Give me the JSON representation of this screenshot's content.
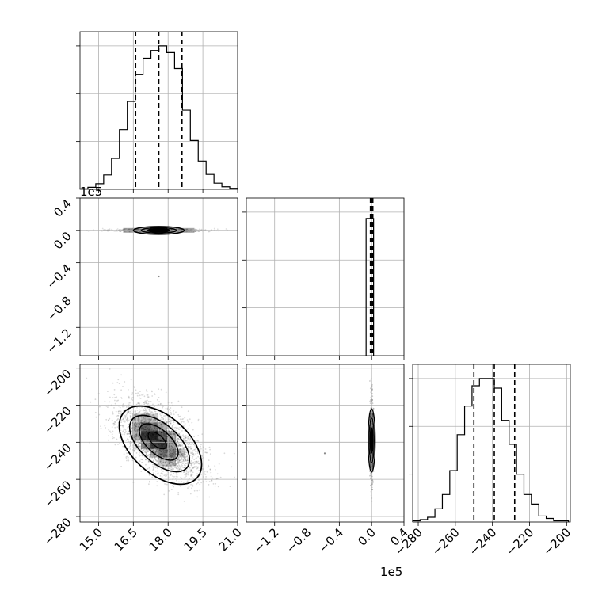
{
  "chart_data": {
    "type": "corner",
    "title": "",
    "grid": true,
    "colors": {
      "line": "#000000",
      "grid": "#b0b0b0",
      "background": "#ffffff",
      "density": "#000000"
    },
    "parameters": [
      {
        "label": "",
        "range": [
          14.2,
          21.0
        ],
        "offset_text": "1e5"
      },
      {
        "label": "",
        "range": [
          -1.55,
          0.4
        ],
        "offset_text": "1e5"
      },
      {
        "label": "",
        "range": [
          -283,
          -198
        ],
        "offset_text": ""
      }
    ],
    "x_tick_labels": [
      [
        "15.0",
        "16.5",
        "18.0",
        "19.5",
        "21.0"
      ],
      [
        "−1.2",
        "−0.8",
        "−0.4",
        "0.0",
        "0.4"
      ],
      [
        "−280",
        "−260",
        "−240",
        "−220",
        "−200"
      ]
    ],
    "y_tick_labels": {
      "row1": [
        "0.4",
        "0.0",
        "−0.4",
        "−0.8",
        "−1.2"
      ],
      "row2": [
        "−200",
        "−220",
        "−240",
        "−260",
        "−280"
      ]
    },
    "y_ticks": {
      "row1": [
        0.4,
        0.0,
        -0.4,
        -0.8,
        -1.2
      ],
      "row2": [
        -200,
        -220,
        -240,
        -260,
        -280
      ]
    },
    "x_ticks": [
      [
        15.0,
        16.5,
        18.0,
        19.5,
        21.0
      ],
      [
        -1.2,
        -0.8,
        -0.4,
        0.0,
        0.4
      ],
      [
        -280,
        -260,
        -240,
        -220,
        -200
      ]
    ],
    "histograms": [
      {
        "parameter": 0,
        "bins": [
          14.2,
          14.54,
          14.88,
          15.22,
          15.56,
          15.9,
          16.24,
          16.58,
          16.92,
          17.26,
          17.6,
          17.94,
          18.28,
          18.62,
          18.96,
          19.3,
          19.64,
          19.98,
          20.32,
          20.66,
          21.0
        ],
        "counts": [
          1,
          4,
          11,
          28,
          60,
          116,
          171,
          223,
          255,
          270,
          279,
          266,
          235,
          154,
          95,
          55,
          29,
          12,
          5,
          2
        ],
        "quantiles": [
          16.6,
          17.6,
          18.6
        ]
      },
      {
        "parameter": 1,
        "bins": [
          -0.02,
          0.0,
          0.02
        ],
        "counts": [
          1,
          1
        ],
        "quantiles": [
          -0.01,
          0.0,
          0.01
        ]
      },
      {
        "parameter": 2,
        "bins": [
          -283,
          -279,
          -275,
          -271,
          -267,
          -263,
          -259,
          -255,
          -251,
          -247,
          -243,
          -239,
          -235,
          -231,
          -227,
          -223,
          -219,
          -215,
          -211,
          -207,
          -203,
          -199
        ],
        "counts": [
          1,
          2,
          4,
          11,
          23,
          43,
          73,
          97,
          114,
          120,
          120,
          112,
          85,
          65,
          40,
          23,
          15,
          5,
          3,
          1,
          1
        ],
        "quantiles": [
          -250,
          -239,
          -228
        ]
      }
    ],
    "scatter_panels": [
      {
        "x_param": 0,
        "y_param": 1,
        "center": [
          17.6,
          0.0
        ],
        "x_extent": [
          14.4,
          20.8
        ],
        "y_extent": [
          -0.01,
          0.01
        ],
        "outlier": [
          17.6,
          -0.57
        ]
      },
      {
        "x_param": 0,
        "y_param": 2,
        "center": [
          17.6,
          -239
        ],
        "x_extent": [
          14.5,
          21.0
        ],
        "y_extent": [
          -275,
          -200
        ]
      },
      {
        "x_param": 1,
        "y_param": 2,
        "center": [
          0.0,
          -239
        ],
        "x_extent": [
          -0.02,
          0.02
        ],
        "y_extent": [
          -275,
          -200
        ],
        "outlier": [
          -0.58,
          -246
        ]
      }
    ]
  }
}
